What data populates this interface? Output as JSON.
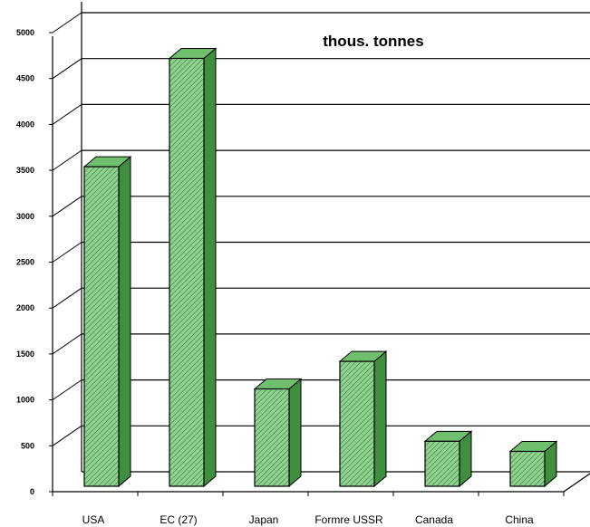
{
  "chart_data": {
    "type": "bar",
    "title": "thous. tonnes",
    "xlabel": "",
    "ylabel": "",
    "categories": [
      "USA",
      "EC (27)",
      "Japan",
      "Formre USSR",
      "Canada",
      "China"
    ],
    "values": [
      3480,
      4660,
      1060,
      1360,
      490,
      380
    ],
    "ylim": [
      0,
      5000
    ],
    "yticks": [
      "0",
      "500",
      "1000",
      "1500",
      "2000",
      "2500",
      "3000",
      "3500",
      "4000",
      "4500",
      "5000"
    ],
    "grid": true,
    "style": "3d",
    "colors": {
      "bar_front": "#8fd18f",
      "bar_top": "#6fbf6f",
      "bar_side": "#3f8f3f",
      "outline": "#000000"
    }
  }
}
